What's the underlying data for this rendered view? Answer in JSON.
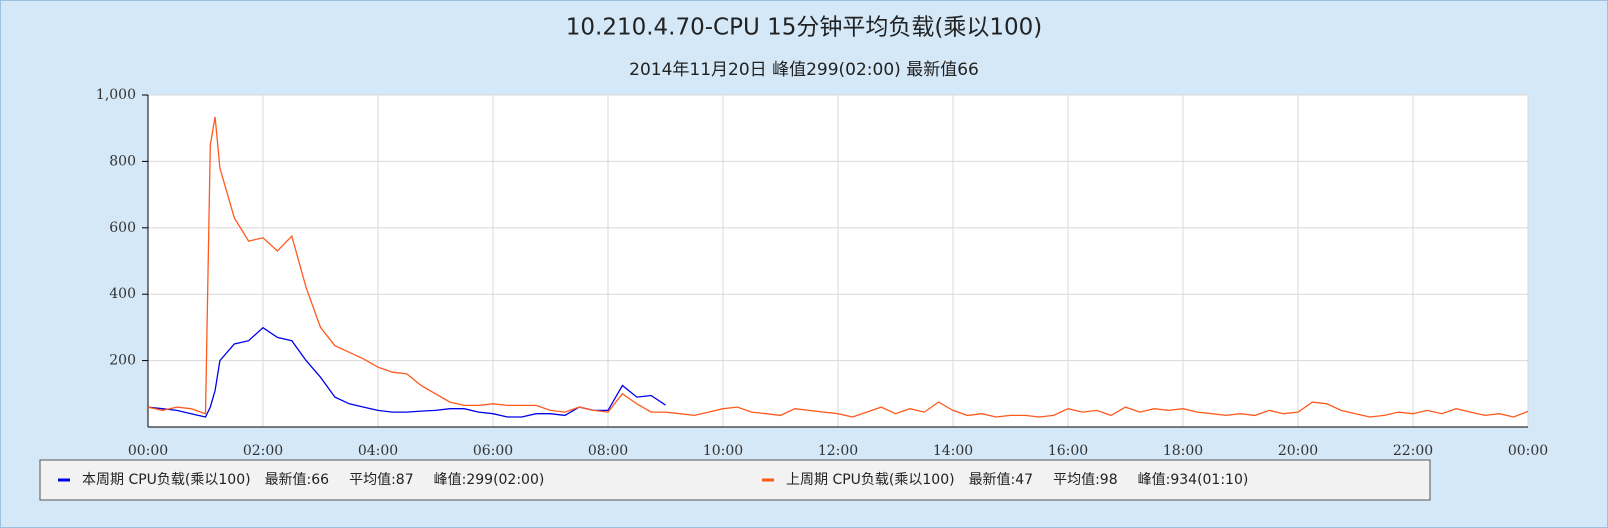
{
  "chart_data": {
    "type": "line",
    "title": "10.210.4.70-CPU 15分钟平均负载(乘以100)",
    "subtitle": "2014年11月20日 峰值299(02:00) 最新值66",
    "x": [
      0,
      0.25,
      0.5,
      0.75,
      1,
      1.0833,
      1.1667,
      1.25,
      1.5,
      1.75,
      2,
      2.25,
      2.5,
      2.75,
      3,
      3.25,
      3.5,
      3.75,
      4,
      4.25,
      4.5,
      4.75,
      5,
      5.25,
      5.5,
      5.75,
      6,
      6.25,
      6.5,
      6.75,
      7,
      7.25,
      7.5,
      7.75,
      8,
      8.25,
      8.5,
      8.75,
      9,
      9.25,
      9.5,
      9.75,
      10,
      10.25,
      10.5,
      10.75,
      11,
      11.25,
      11.5,
      11.75,
      12,
      12.25,
      12.5,
      12.75,
      13,
      13.25,
      13.5,
      13.75,
      14,
      14.25,
      14.5,
      14.75,
      15,
      15.25,
      15.5,
      15.75,
      16,
      16.25,
      16.5,
      16.75,
      17,
      17.25,
      17.5,
      17.75,
      18,
      18.25,
      18.5,
      18.75,
      19,
      19.25,
      19.5,
      19.75,
      20,
      20.25,
      20.5,
      20.75,
      21,
      21.25,
      21.5,
      21.75,
      22,
      22.25,
      22.5,
      22.75,
      23,
      23.25,
      23.5,
      23.75,
      24
    ],
    "series": [
      {
        "name": "本周期 CPU负载(乘以100)",
        "color": "#0000ee",
        "stats": [
          "最新值:66",
          "平均值:87",
          "峰值:299(02:00)"
        ],
        "values": [
          60,
          55,
          50,
          40,
          30,
          60,
          110,
          200,
          250,
          260,
          299,
          270,
          260,
          200,
          150,
          90,
          70,
          60,
          50,
          45,
          45,
          48,
          50,
          55,
          55,
          45,
          40,
          30,
          30,
          40,
          40,
          35,
          60,
          50,
          50,
          125,
          90,
          95,
          66,
          null,
          null,
          null,
          null,
          null,
          null,
          null,
          null,
          null,
          null,
          null,
          null,
          null,
          null,
          null,
          null,
          null,
          null,
          null,
          null,
          null,
          null,
          null,
          null,
          null,
          null,
          null,
          null,
          null,
          null,
          null,
          null,
          null,
          null,
          null,
          null,
          null,
          null,
          null,
          null,
          null,
          null,
          null,
          null,
          null,
          null,
          null,
          null,
          null,
          null,
          null,
          null,
          null,
          null,
          null,
          null,
          null,
          null,
          null,
          null
        ]
      },
      {
        "name": "上周期 CPU负载(乘以100)",
        "color": "#ff5a1e",
        "stats": [
          "最新值:47",
          "平均值:98",
          "峰值:934(01:10)"
        ],
        "values": [
          60,
          50,
          60,
          55,
          40,
          850,
          934,
          780,
          630,
          560,
          570,
          530,
          575,
          420,
          300,
          245,
          225,
          205,
          180,
          165,
          160,
          125,
          100,
          75,
          65,
          65,
          70,
          65,
          65,
          65,
          50,
          45,
          60,
          50,
          45,
          100,
          70,
          45,
          45,
          40,
          35,
          45,
          55,
          60,
          45,
          40,
          35,
          55,
          50,
          45,
          40,
          30,
          45,
          60,
          40,
          55,
          45,
          75,
          50,
          35,
          40,
          30,
          35,
          35,
          30,
          35,
          55,
          45,
          50,
          35,
          60,
          45,
          55,
          50,
          55,
          45,
          40,
          35,
          40,
          35,
          50,
          40,
          45,
          75,
          70,
          50,
          40,
          30,
          35,
          45,
          40,
          50,
          40,
          55,
          45,
          35,
          40,
          30,
          47
        ]
      }
    ],
    "xlim": [
      0,
      24
    ],
    "xticks": [
      {
        "value": 0,
        "label": "00:00"
      },
      {
        "value": 2,
        "label": "02:00"
      },
      {
        "value": 4,
        "label": "04:00"
      },
      {
        "value": 6,
        "label": "06:00"
      },
      {
        "value": 8,
        "label": "08:00"
      },
      {
        "value": 10,
        "label": "10:00"
      },
      {
        "value": 12,
        "label": "12:00"
      },
      {
        "value": 14,
        "label": "14:00"
      },
      {
        "value": 16,
        "label": "16:00"
      },
      {
        "value": 18,
        "label": "18:00"
      },
      {
        "value": 20,
        "label": "20:00"
      },
      {
        "value": 22,
        "label": "22:00"
      },
      {
        "value": 24,
        "label": "00:00"
      }
    ],
    "ylim": [
      0,
      1000
    ],
    "yticks": [
      200,
      400,
      600,
      800,
      {
        "value": 1000,
        "label": "1,000"
      }
    ],
    "grid": true,
    "legend": "bottom"
  }
}
